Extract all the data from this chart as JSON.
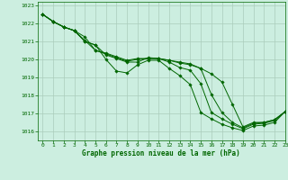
{
  "title": "Graphe pression niveau de la mer (hPa)",
  "background_color": "#cceee0",
  "grid_color": "#aaccbb",
  "line_color": "#006600",
  "marker_color": "#006600",
  "xlim": [
    -0.5,
    23
  ],
  "ylim": [
    1015.5,
    1023.2
  ],
  "yticks": [
    1016,
    1017,
    1018,
    1019,
    1020,
    1021,
    1022,
    1023
  ],
  "xticks": [
    0,
    1,
    2,
    3,
    4,
    5,
    6,
    7,
    8,
    9,
    10,
    11,
    12,
    13,
    14,
    15,
    16,
    17,
    18,
    19,
    20,
    21,
    22,
    23
  ],
  "series": [
    [
      1022.5,
      1022.1,
      1021.8,
      1021.6,
      1021.0,
      1020.8,
      1020.0,
      1019.35,
      1019.25,
      1019.7,
      1019.95,
      1019.95,
      1019.5,
      1019.1,
      1018.6,
      1017.05,
      1016.7,
      1016.4,
      1016.2,
      1016.05,
      1016.3,
      1016.35,
      1016.5,
      1017.1
    ],
    [
      1022.5,
      1022.1,
      1021.8,
      1021.6,
      1021.0,
      1020.8,
      1020.25,
      1020.05,
      1019.85,
      1019.85,
      1020.1,
      1020.05,
      1019.85,
      1019.55,
      1019.4,
      1018.65,
      1017.05,
      1016.7,
      1016.4,
      1016.15,
      1016.4,
      1016.45,
      1016.6,
      1017.1
    ],
    [
      1022.5,
      1022.1,
      1021.8,
      1021.6,
      1021.05,
      1020.5,
      1020.3,
      1020.1,
      1019.9,
      1020.0,
      1020.05,
      1020.05,
      1019.95,
      1019.8,
      1019.7,
      1019.5,
      1018.05,
      1017.05,
      1016.5,
      1016.2,
      1016.45,
      1016.5,
      1016.65,
      1017.1
    ],
    [
      1022.5,
      1022.1,
      1021.8,
      1021.6,
      1021.25,
      1020.5,
      1020.35,
      1020.15,
      1019.95,
      1020.05,
      1020.05,
      1020.05,
      1019.95,
      1019.85,
      1019.75,
      1019.5,
      1019.2,
      1018.75,
      1017.5,
      1016.25,
      1016.5,
      1016.5,
      1016.65,
      1017.1
    ]
  ]
}
